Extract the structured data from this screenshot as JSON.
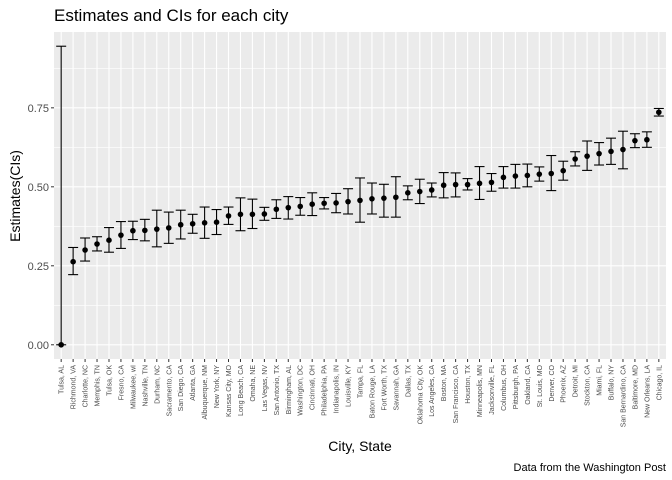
{
  "chart_data": {
    "type": "scatter",
    "title": "Estimates and CIs for each city",
    "xlabel": "City, State",
    "ylabel": "Estimates(CIs)",
    "caption": "Data from the Washington Post",
    "ylim": [
      -0.045,
      0.99
    ],
    "yticks": [
      0.0,
      0.25,
      0.5,
      0.75
    ],
    "ytick_labels": [
      "0.00",
      "0.25",
      "0.50",
      "0.75"
    ],
    "grid": true,
    "background_color": "#ebebeb",
    "grid_color": "#ffffff",
    "mark_color": "#000000",
    "categories": [
      "Tulsa, AL",
      "Richmond, VA",
      "Charlotte, NC",
      "Memphis, TN",
      "Tulsa, OK",
      "Fresno, CA",
      "Milwaukee, wI",
      "Nashville, TN",
      "Durham, NC",
      "Sacramento, CA",
      "San Diego, CA",
      "Atlanta, GA",
      "Albuquerque, NM",
      "New York, NY",
      "Kansas City, MO",
      "Long Beach, CA",
      "Omaha, NE",
      "Las Vegas, NV",
      "San Antonio, TX",
      "Birmingham, AL",
      "Washington, DC",
      "Cincinnati, OH",
      "Philadelphia, PA",
      "Indianapolis, IN",
      "Louisville, KY",
      "Tampa, FL",
      "Baton Rouge, LA",
      "Fort Worth, TX",
      "Savannah, GA",
      "Dallas, TX",
      "Oklahoma City, OK",
      "Los Angeles, CA",
      "Boston, MA",
      "San Francisco, CA",
      "Houston, TX",
      "Minneapolis, MN",
      "Jacksonville, FL",
      "Columbus, OH",
      "Pittsburgh, PA",
      "Oakland, CA",
      "St. Louis, MO",
      "Denver, CO",
      "Phoenix, AZ",
      "Detroit, MI",
      "Stockton, CA",
      "Miami, FL",
      "Buffalo, NY",
      "San Bernardino, CA",
      "Baltimore, MD",
      "New Orleans, LA",
      "Chicago, IL"
    ],
    "estimate": [
      0.0,
      0.263,
      0.3,
      0.319,
      0.331,
      0.347,
      0.361,
      0.362,
      0.366,
      0.37,
      0.38,
      0.383,
      0.386,
      0.388,
      0.408,
      0.413,
      0.413,
      0.414,
      0.429,
      0.434,
      0.438,
      0.445,
      0.448,
      0.449,
      0.453,
      0.457,
      0.462,
      0.464,
      0.467,
      0.481,
      0.485,
      0.49,
      0.505,
      0.507,
      0.507,
      0.511,
      0.514,
      0.53,
      0.534,
      0.536,
      0.54,
      0.542,
      0.551,
      0.588,
      0.597,
      0.605,
      0.612,
      0.618,
      0.646,
      0.649,
      0.736
    ],
    "ci_low": [
      0.0,
      0.222,
      0.265,
      0.297,
      0.293,
      0.305,
      0.333,
      0.329,
      0.31,
      0.321,
      0.335,
      0.353,
      0.337,
      0.349,
      0.381,
      0.361,
      0.368,
      0.394,
      0.4,
      0.398,
      0.41,
      0.409,
      0.43,
      0.418,
      0.414,
      0.388,
      0.414,
      0.404,
      0.404,
      0.459,
      0.447,
      0.468,
      0.465,
      0.468,
      0.49,
      0.46,
      0.486,
      0.496,
      0.496,
      0.5,
      0.518,
      0.488,
      0.521,
      0.566,
      0.552,
      0.569,
      0.571,
      0.557,
      0.624,
      0.625,
      0.724
    ],
    "ci_high": [
      0.945,
      0.308,
      0.338,
      0.342,
      0.371,
      0.39,
      0.391,
      0.397,
      0.426,
      0.42,
      0.426,
      0.413,
      0.436,
      0.428,
      0.436,
      0.465,
      0.461,
      0.435,
      0.459,
      0.469,
      0.466,
      0.481,
      0.466,
      0.479,
      0.494,
      0.528,
      0.512,
      0.508,
      0.532,
      0.503,
      0.524,
      0.512,
      0.545,
      0.544,
      0.526,
      0.564,
      0.542,
      0.564,
      0.571,
      0.572,
      0.563,
      0.599,
      0.581,
      0.611,
      0.645,
      0.64,
      0.654,
      0.676,
      0.668,
      0.674,
      0.748
    ]
  }
}
